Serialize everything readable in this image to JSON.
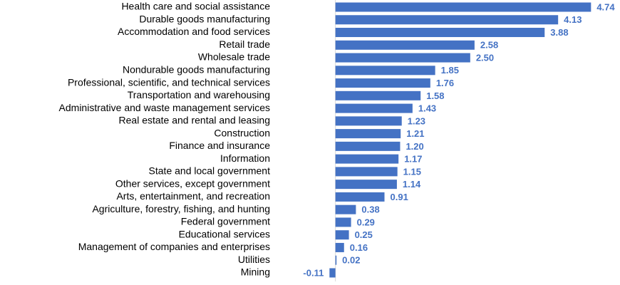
{
  "chart_data": {
    "type": "bar",
    "orientation": "horizontal",
    "color": "#4472c4",
    "label_color": "#4472c4",
    "categories": [
      "Health care and social assistance",
      "Durable goods manufacturing",
      "Accommodation and food services",
      "Retail trade",
      "Wholesale trade",
      "Nondurable goods manufacturing",
      "Professional, scientific, and technical services",
      "Transportation and warehousing",
      "Administrative and waste management services",
      "Real estate and rental and leasing",
      "Construction",
      "Finance and insurance",
      "Information",
      "State and local government",
      "Other services, except government",
      "Arts, entertainment, and recreation",
      "Agriculture, forestry, fishing, and hunting",
      "Federal government",
      "Educational services",
      "Management of companies and enterprises",
      "Utilities",
      "Mining"
    ],
    "values": [
      4.74,
      4.13,
      3.88,
      2.58,
      2.5,
      1.85,
      1.76,
      1.58,
      1.43,
      1.23,
      1.21,
      1.2,
      1.17,
      1.15,
      1.14,
      0.91,
      0.38,
      0.29,
      0.25,
      0.16,
      0.02,
      -0.11
    ],
    "value_labels": [
      "4.74",
      "4.13",
      "3.88",
      "2.58",
      "2.50",
      "1.85",
      "1.76",
      "1.58",
      "1.43",
      "1.23",
      "1.21",
      "1.20",
      "1.17",
      "1.15",
      "1.14",
      "0.91",
      "0.38",
      "0.29",
      "0.25",
      "0.16",
      "0.02",
      "-0.11"
    ],
    "xlim": [
      -1,
      5
    ]
  }
}
